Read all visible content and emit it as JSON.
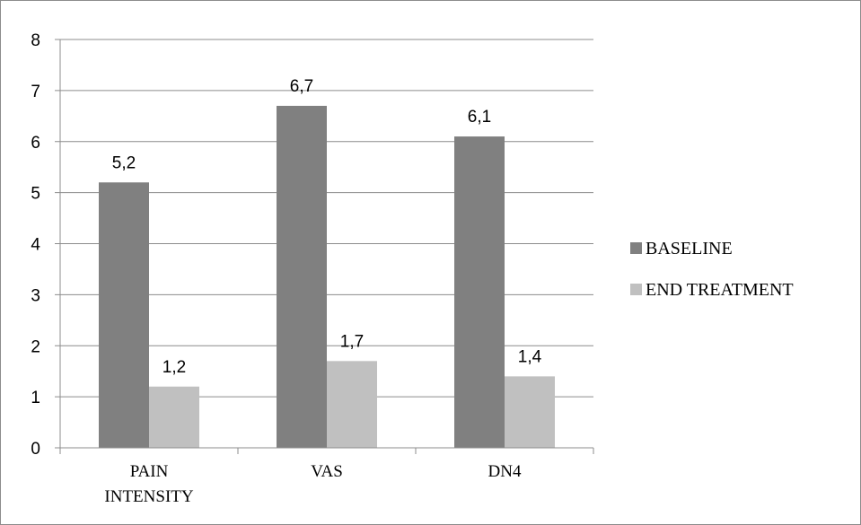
{
  "chart_data": {
    "type": "bar",
    "categories": [
      [
        "PAIN",
        "INTENSITY"
      ],
      [
        "VAS"
      ],
      [
        "DN4"
      ]
    ],
    "series": [
      {
        "name": "BASELINE",
        "values": [
          5.2,
          6.7,
          6.1
        ],
        "value_labels": [
          "5,2",
          "6,7",
          "6,1"
        ],
        "color": "#808080"
      },
      {
        "name": "END TREATMENT",
        "values": [
          1.2,
          1.7,
          1.4
        ],
        "value_labels": [
          "1,2",
          "1,7",
          "1,4"
        ],
        "color": "#c0c0c0"
      }
    ],
    "ylim": [
      0,
      8
    ],
    "yticks": [
      0,
      1,
      2,
      3,
      4,
      5,
      6,
      7,
      8
    ],
    "grid": true,
    "legend": "right"
  }
}
